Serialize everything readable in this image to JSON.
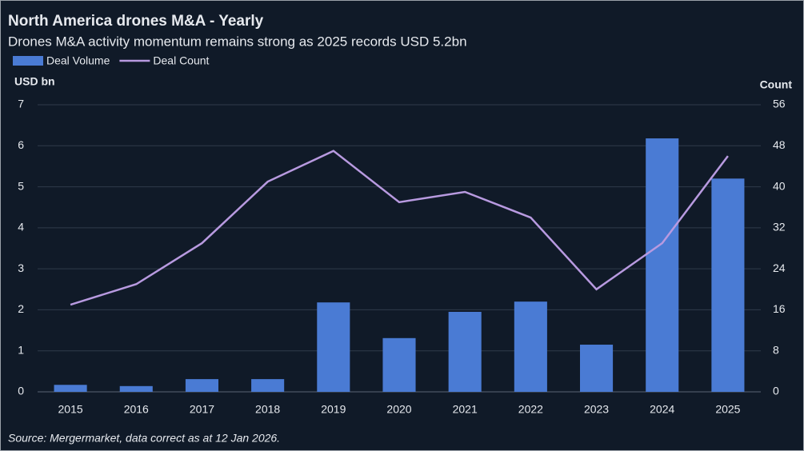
{
  "chart_data": {
    "type": "bar_line",
    "title": "North America drones M&A - Yearly",
    "subtitle": "Drones M&A activity momentum  remains strong as 2025 records USD 5.2bn",
    "y_label": "USD bn",
    "y2_label": "Count",
    "source": "Source: Mergermarket, data correct as at 12 Jan 2026.",
    "categories": [
      "2015",
      "2016",
      "2017",
      "2018",
      "2019",
      "2020",
      "2021",
      "2022",
      "2023",
      "2024",
      "2025"
    ],
    "series": [
      {
        "name": "Deal Volume",
        "type": "bar",
        "color": "#4a7bd4",
        "values": [
          0.17,
          0.14,
          0.31,
          0.31,
          2.18,
          1.31,
          1.95,
          2.2,
          1.15,
          6.18,
          5.2
        ]
      },
      {
        "name": "Deal Count",
        "type": "line",
        "axis": "y2",
        "color": "#b89ae0",
        "values": [
          17,
          21,
          29,
          41,
          47,
          37,
          39,
          34,
          20,
          29,
          46
        ]
      }
    ],
    "ylim": [
      0,
      7
    ],
    "yticks": [
      0,
      1,
      2,
      3,
      4,
      5,
      6,
      7
    ],
    "y2lim": [
      0,
      56
    ],
    "y2ticks": [
      0,
      8,
      16,
      24,
      32,
      40,
      48,
      56
    ],
    "grid": true,
    "legend": "top-left"
  }
}
